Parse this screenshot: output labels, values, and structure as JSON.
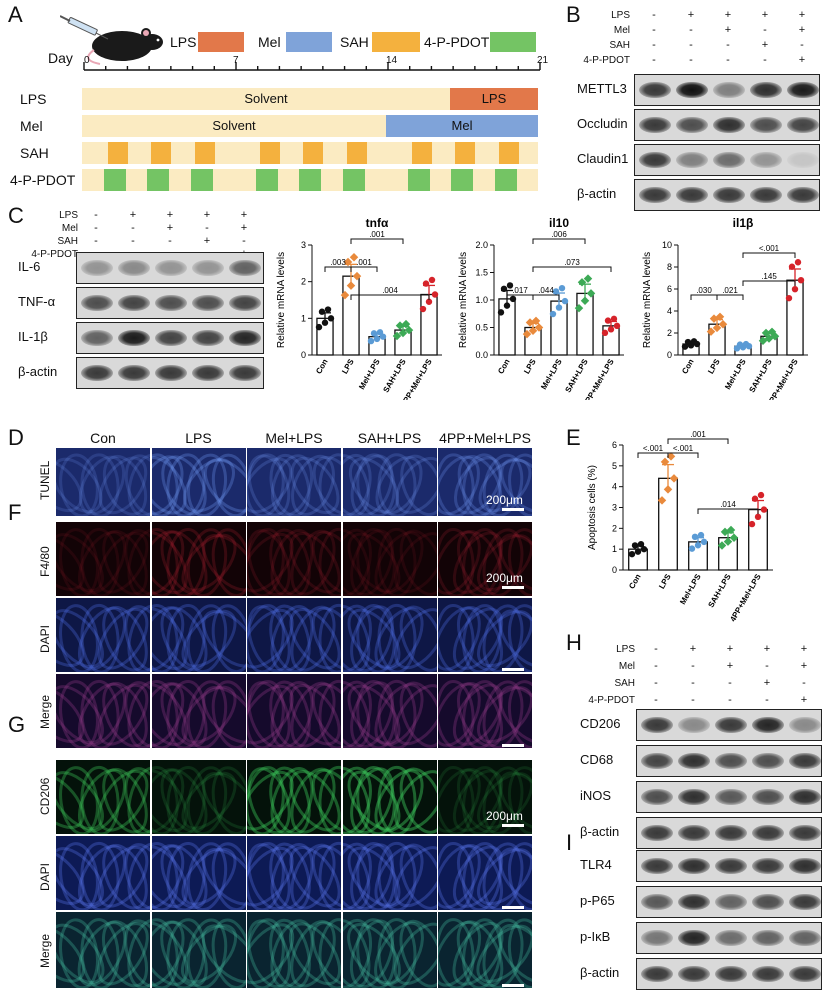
{
  "panels": {
    "A": "A",
    "B": "B",
    "C": "C",
    "D": "D",
    "E": "E",
    "F": "F",
    "G": "G",
    "H": "H",
    "I": "I"
  },
  "timeline": {
    "day_label": "Day",
    "ticks": [
      "0",
      "7",
      "14",
      "21"
    ],
    "legend": [
      {
        "name": "LPS",
        "color": "#E2784A"
      },
      {
        "name": "Mel",
        "color": "#7FA3D9"
      },
      {
        "name": "SAH",
        "color": "#F4B13E"
      },
      {
        "name": "4-P-PDOT",
        "color": "#74C464"
      }
    ],
    "rows": [
      {
        "label": "LPS",
        "segments": [
          {
            "text": "Solvent",
            "color": "#FBEBC2"
          },
          {
            "text": "LPS",
            "color": "#E2784A"
          }
        ]
      },
      {
        "label": "Mel",
        "segments": [
          {
            "text": "Solvent",
            "color": "#FBEBC2"
          },
          {
            "text": "Mel",
            "color": "#7FA3D9"
          }
        ]
      },
      {
        "label": "SAH",
        "segments": []
      },
      {
        "label": "4-P-PDOT",
        "segments": []
      }
    ]
  },
  "blot_b": {
    "conditions": {
      "LPS": [
        "-",
        "+",
        "+",
        "+",
        "+"
      ],
      "Mel": [
        "-",
        "-",
        "+",
        "-",
        "+"
      ],
      "SAH": [
        "-",
        "-",
        "-",
        "+",
        "-"
      ],
      "4-P-PDOT": [
        "-",
        "-",
        "-",
        "-",
        "+"
      ]
    },
    "proteins": [
      "METTL3",
      "Occludin",
      "Claudin1",
      "β-actin"
    ]
  },
  "blot_c": {
    "conditions": {
      "LPS": [
        "-",
        "+",
        "+",
        "+",
        "+"
      ],
      "Mel": [
        "-",
        "-",
        "+",
        "-",
        "+"
      ],
      "SAH": [
        "-",
        "-",
        "-",
        "+",
        "-"
      ],
      "4-P-PDOT": [
        "-",
        "-",
        "-",
        "-",
        "+"
      ]
    },
    "proteins": [
      "IL-6",
      "TNF-α",
      "IL-1β",
      "β-actin"
    ]
  },
  "blot_h": {
    "conditions": {
      "LPS": [
        "-",
        "+",
        "+",
        "+",
        "+"
      ],
      "Mel": [
        "-",
        "-",
        "+",
        "-",
        "+"
      ],
      "SAH": [
        "-",
        "-",
        "-",
        "+",
        "-"
      ],
      "4-P-PDOT": [
        "-",
        "-",
        "-",
        "-",
        "+"
      ]
    },
    "proteins": [
      "CD206",
      "CD68",
      "iNOS",
      "β-actin"
    ]
  },
  "blot_i": {
    "proteins": [
      "TLR4",
      "p-P65",
      "p-IκB",
      "β-actin"
    ]
  },
  "chart_data": [
    {
      "type": "bar",
      "title": "tnfα",
      "ylabel": "Relative mRNA levels",
      "categories": [
        "Con",
        "LPS",
        "Mel+LPS",
        "SAH+LPS",
        "4PP+Mel+LPS"
      ],
      "values": [
        1.0,
        2.15,
        0.5,
        0.68,
        1.65
      ],
      "ylim": [
        0,
        3
      ],
      "yticks": [
        "0",
        "1",
        "2",
        "3"
      ],
      "colors": [
        "#111111",
        "#E98A3C",
        "#5B9BD5",
        "#3DAA56",
        "#D6232A"
      ],
      "annotations": [
        ".003",
        ".001",
        ".001",
        ".004"
      ],
      "sig_lt": "<"
    },
    {
      "type": "bar",
      "title": "il10",
      "ylabel": "Relative mRNA levels",
      "categories": [
        "Con",
        "LPS",
        "Mel+LPS",
        "SAH+LPS",
        "4PP+Mel+LPS"
      ],
      "values": [
        1.02,
        0.5,
        0.98,
        1.12,
        0.53
      ],
      "ylim": [
        0,
        2
      ],
      "yticks": [
        "0.0",
        "0.5",
        "1.0",
        "1.5",
        "2.0"
      ],
      "colors": [
        "#111111",
        "#E98A3C",
        "#5B9BD5",
        "#3DAA56",
        "#D6232A"
      ],
      "annotations": [
        ".017",
        ".044",
        ".006",
        ".073"
      ]
    },
    {
      "type": "bar",
      "title": "il1β",
      "ylabel": "Relative mRNA levels",
      "categories": [
        "Con",
        "LPS",
        "Mel+LPS",
        "SAH+LPS",
        "4PP+Mel+LPS"
      ],
      "values": [
        1.0,
        2.8,
        0.8,
        1.7,
        6.8
      ],
      "ylim": [
        0,
        10
      ],
      "yticks": [
        "0",
        "2",
        "4",
        "6",
        "8",
        "10"
      ],
      "colors": [
        "#111111",
        "#E98A3C",
        "#5B9BD5",
        "#3DAA56",
        "#D6232A"
      ],
      "annotations": [
        ".030",
        ".021",
        ".145",
        "<.001"
      ]
    },
    {
      "type": "bar",
      "title": "",
      "ylabel": "Apoptosis cells (%)",
      "categories": [
        "Con",
        "LPS",
        "Mel+LPS",
        "SAH+LPS",
        "4PP+Mel+LPS"
      ],
      "values": [
        1.0,
        4.4,
        1.35,
        1.55,
        2.9
      ],
      "ylim": [
        0,
        6
      ],
      "yticks": [
        "0",
        "1",
        "2",
        "3",
        "4",
        "5",
        "6"
      ],
      "colors": [
        "#111111",
        "#E98A3C",
        "#5B9BD5",
        "#3DAA56",
        "#D6232A"
      ],
      "annotations": [
        "<.001",
        "<.001",
        ".001",
        ".014"
      ]
    }
  ],
  "micro": {
    "columns": [
      "Con",
      "LPS",
      "Mel+LPS",
      "SAH+LPS",
      "4PP+Mel+LPS"
    ],
    "row_labels": {
      "tunel": "TUNEL",
      "f480": "F4/80",
      "dapi1": "DAPI",
      "merge1": "Merge",
      "cd206": "CD206",
      "dapi2": "DAPI",
      "merge2": "Merge"
    },
    "scale": "200μm"
  }
}
